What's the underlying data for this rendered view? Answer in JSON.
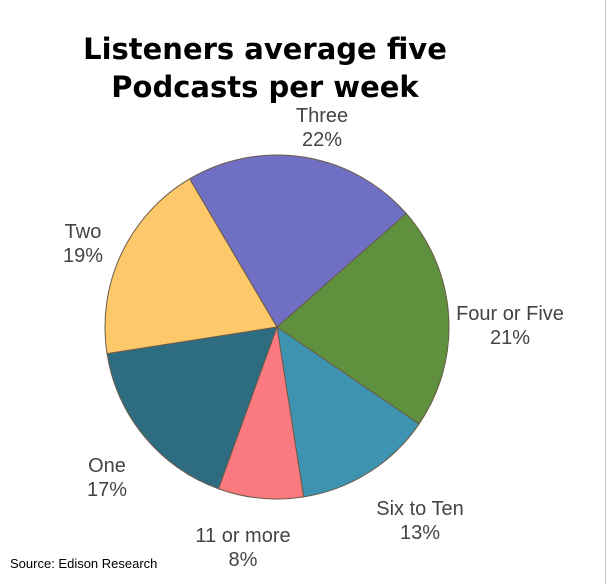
{
  "chart_data": {
    "type": "pie",
    "title": [
      "Listeners average five",
      "Podcasts per week"
    ],
    "categories": [
      "Four or Five",
      "Six to Ten",
      "11 or more",
      "One",
      "Two",
      "Three"
    ],
    "values": [
      21,
      13,
      8,
      17,
      19,
      22
    ],
    "labels": [
      "21%",
      "13%",
      "8%",
      "17%",
      "19%",
      "22%"
    ],
    "colors": [
      "#5e903e",
      "#3d93b0",
      "#fb7a80",
      "#2e6c82",
      "#fdc86a",
      "#6f6fc3"
    ],
    "legend": "none",
    "direction": "clockwise"
  },
  "source": "Source: Edison Research"
}
